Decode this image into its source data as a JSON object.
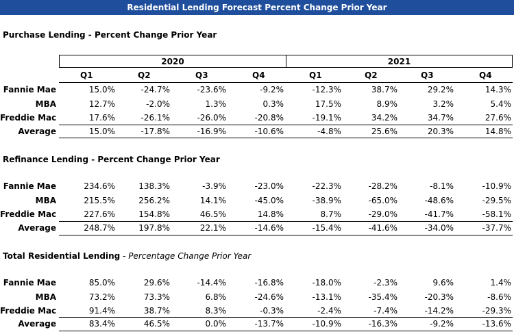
{
  "title": "Residential Lending Forecast Percent Change Prior Year",
  "purchase": {
    "title": "Purchase Lending  - Percent Change Prior Year",
    "years": [
      "2020",
      "2021"
    ],
    "quarters": [
      "Q1",
      "Q2",
      "Q3",
      "Q4",
      "Q1",
      "Q2",
      "Q3",
      "Q4"
    ],
    "rows": [
      {
        "label": "Fannie Mae",
        "values": [
          "15.0%",
          "-24.7%",
          "-23.6%",
          "-9.2%",
          "-12.3%",
          "38.7%",
          "29.2%",
          "14.3%"
        ]
      },
      {
        "label": "MBA",
        "values": [
          "12.7%",
          "-2.0%",
          "1.3%",
          "0.3%",
          "17.5%",
          "8.9%",
          "3.2%",
          "5.4%"
        ]
      },
      {
        "label": "Freddie Mac",
        "values": [
          "17.6%",
          "-26.1%",
          "-26.0%",
          "-20.8%",
          "-19.1%",
          "34.2%",
          "34.7%",
          "27.6%"
        ]
      },
      {
        "label": "Average",
        "values": [
          "15.0%",
          "-17.8%",
          "-16.9%",
          "-10.6%",
          "-4.8%",
          "25.6%",
          "20.3%",
          "14.8%"
        ]
      }
    ]
  },
  "refinance": {
    "title": "Refinance Lending  - Percent Change Prior Year",
    "rows": [
      {
        "label": "Fannie Mae",
        "values": [
          "234.6%",
          "138.3%",
          "-3.9%",
          "-23.0%",
          "-22.3%",
          "-28.2%",
          "-8.1%",
          "-10.9%"
        ]
      },
      {
        "label": "MBA",
        "values": [
          "215.5%",
          "256.2%",
          "14.1%",
          "-45.0%",
          "-38.9%",
          "-65.0%",
          "-48.6%",
          "-29.5%"
        ]
      },
      {
        "label": "Freddie Mac",
        "values": [
          "227.6%",
          "154.8%",
          "46.5%",
          "14.8%",
          "8.7%",
          "-29.0%",
          "-41.7%",
          "-58.1%"
        ]
      },
      {
        "label": "Average",
        "values": [
          "248.7%",
          "197.8%",
          "22.1%",
          "-14.6%",
          "-15.4%",
          "-41.6%",
          "-34.0%",
          "-37.7%"
        ]
      }
    ]
  },
  "total": {
    "title": "Total Residential Lending",
    "subtitle": " - Percentage Change Prior Year",
    "rows": [
      {
        "label": "Fannie Mae",
        "values": [
          "85.0%",
          "29.6%",
          "-14.4%",
          "-16.8%",
          "-18.0%",
          "-2.3%",
          "9.6%",
          "1.4%"
        ]
      },
      {
        "label": "MBA",
        "values": [
          "73.2%",
          "73.3%",
          "6.8%",
          "-24.6%",
          "-13.1%",
          "-35.4%",
          "-20.3%",
          "-8.6%"
        ]
      },
      {
        "label": "Freddie Mac",
        "values": [
          "91.4%",
          "38.7%",
          "8.3%",
          "-0.3%",
          "-2.4%",
          "-7.4%",
          "-14.2%",
          "-29.3%"
        ]
      },
      {
        "label": "Average",
        "values": [
          "83.4%",
          "46.5%",
          "0.0%",
          "-13.7%",
          "-10.9%",
          "-16.3%",
          "-9.2%",
          "-13.6%"
        ]
      }
    ]
  }
}
